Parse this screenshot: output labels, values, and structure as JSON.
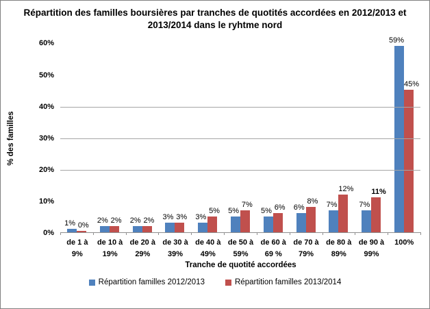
{
  "chart_data": {
    "type": "bar",
    "title": "Répartition des familles boursières par tranches de quotités accordées en 2012/2013 et 2013/2014 dans le ryhtme nord",
    "xlabel": "Tranche de quotité accordées",
    "ylabel": "% des familles",
    "categories": [
      "de 1 à 9%",
      "de 10 à 19%",
      "de 20 à 29%",
      "de 30 à 39%",
      "de 40 à 49%",
      "de 50 à 59%",
      "de 60 à 69 %",
      "de 70 à 79%",
      "de 80 à 89%",
      "de 90 à 99%",
      "100%"
    ],
    "series": [
      {
        "name": "Répartition familles 2012/2013",
        "color": "#4f81bd",
        "values": [
          1,
          2,
          2,
          3,
          3,
          5,
          5,
          6,
          7,
          7,
          59
        ],
        "labels": [
          "1%",
          "2%",
          "2%",
          "3%",
          "3%",
          "5%",
          "5%",
          "6%",
          "7%",
          "7%",
          "59%"
        ],
        "bold_label_indices": []
      },
      {
        "name": "Répartition familles 2013/2014",
        "color": "#c0504d",
        "values": [
          0,
          2,
          2,
          3,
          5,
          7,
          6,
          8,
          12,
          11,
          45
        ],
        "labels": [
          "0%",
          "2%",
          "2%",
          "3%",
          "5%",
          "7%",
          "6%",
          "8%",
          "12%",
          "11%",
          "45%"
        ],
        "bold_label_indices": [
          9
        ]
      }
    ],
    "ylim": [
      0,
      60
    ],
    "yticks": [
      0,
      10,
      20,
      30,
      40,
      50,
      60
    ],
    "ytick_labels": [
      "0%",
      "10%",
      "20%",
      "30%",
      "40%",
      "50%",
      "60%"
    ],
    "gridlines": [
      20,
      30,
      40
    ],
    "grid_on": true,
    "legend_position": "bottom"
  },
  "colors": {
    "series1": "#4f81bd",
    "series2": "#c0504d",
    "gridline": "#a6a6a6",
    "axis": "#8e8e8e",
    "frame_border": "#7f7f7f",
    "text": "#000000"
  }
}
